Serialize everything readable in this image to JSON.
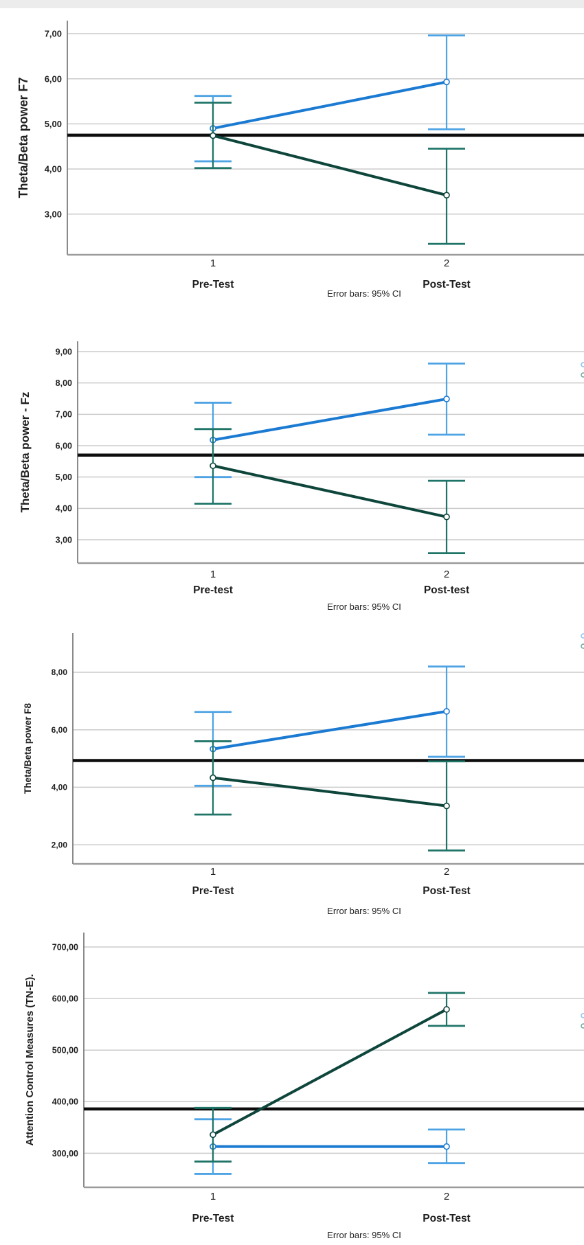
{
  "figure_caption": "Error bars: 95% CI",
  "colors": {
    "blue_line": "#1b7ad2",
    "blue_error": "#4da3e4",
    "teal_line": "#0e463c",
    "teal_error": "#1f7468",
    "reference_line": "#0d0d0d",
    "gridline": "#cbcbcb",
    "y_axis": "#7d7d7d",
    "x_axis": "#9b9b9b",
    "text": "#1f1f1f"
  },
  "chart_data": [
    {
      "type": "line",
      "title": "",
      "ylabel": "Theta/Beta power F7",
      "xlabel": "",
      "x": [
        1,
        2
      ],
      "x_tick_labels": [
        "1",
        "2"
      ],
      "x_group_labels": [
        "Pre-Test",
        "Post-Test"
      ],
      "y_ticks": [
        7,
        6,
        5,
        4,
        3
      ],
      "y_tick_labels": [
        "7,00",
        "6,00",
        "5,00",
        "4,00",
        "3,00"
      ],
      "ylim": [
        2.1,
        7.3
      ],
      "grid": true,
      "legend_position": "cut-off-right",
      "reference_line": 4.75,
      "caption": "Error bars: 95% CI",
      "error_bars": "95% CI",
      "series": [
        {
          "name": "blue-group",
          "values": [
            4.9,
            5.93
          ],
          "ci_low": [
            4.17,
            4.88
          ],
          "ci_high": [
            5.62,
            6.96
          ]
        },
        {
          "name": "dark-teal-group",
          "values": [
            4.74,
            3.42
          ],
          "ci_low": [
            4.02,
            2.34
          ],
          "ci_high": [
            5.47,
            4.45
          ]
        }
      ]
    },
    {
      "type": "line",
      "title": "",
      "ylabel": "Theta/Beta power - Fz",
      "xlabel": "",
      "x": [
        1,
        2
      ],
      "x_tick_labels": [
        "1",
        "2"
      ],
      "x_group_labels": [
        "Pre-test",
        "Post-test"
      ],
      "y_ticks": [
        9,
        8,
        7,
        6,
        5,
        4,
        3
      ],
      "y_tick_labels": [
        "9,00",
        "8,00",
        "7,00",
        "6,00",
        "5,00",
        "4,00",
        "3,00"
      ],
      "ylim": [
        2.25,
        9.4
      ],
      "grid": true,
      "legend_position": "cut-off-right",
      "reference_line": 5.7,
      "caption": "Error bars: 95% CI",
      "error_bars": "95% CI",
      "series": [
        {
          "name": "blue-group",
          "values": [
            6.18,
            7.49
          ],
          "ci_low": [
            5.0,
            6.35
          ],
          "ci_high": [
            7.37,
            8.62
          ]
        },
        {
          "name": "dark-teal-group",
          "values": [
            5.36,
            3.73
          ],
          "ci_low": [
            4.15,
            2.57
          ],
          "ci_high": [
            6.53,
            4.88
          ]
        }
      ]
    },
    {
      "type": "line",
      "title": "",
      "ylabel": "Theta/Beta power F8",
      "xlabel": "",
      "x": [
        1,
        2
      ],
      "x_tick_labels": [
        "1",
        "2"
      ],
      "x_group_labels": [
        "Pre-Test",
        "Post-Test"
      ],
      "y_ticks": [
        8,
        6,
        4,
        2
      ],
      "y_tick_labels": [
        "8,00",
        "6,00",
        "4,00",
        "2,00"
      ],
      "ylim": [
        1.35,
        9.35
      ],
      "grid": true,
      "legend_position": "cut-off-right",
      "reference_line": 4.93,
      "caption": "Error bars: 95% CI",
      "error_bars": "95% CI",
      "series": [
        {
          "name": "blue-group",
          "values": [
            5.33,
            6.64
          ],
          "ci_low": [
            4.05,
            5.06
          ],
          "ci_high": [
            6.62,
            8.2
          ]
        },
        {
          "name": "dark-teal-group",
          "values": [
            4.33,
            3.35
          ],
          "ci_low": [
            3.05,
            1.8
          ],
          "ci_high": [
            5.6,
            4.9
          ]
        }
      ]
    },
    {
      "type": "line",
      "title": "",
      "ylabel": "Attention Control Measures (TN-E).",
      "xlabel": "",
      "x": [
        1,
        2
      ],
      "x_tick_labels": [
        "1",
        "2"
      ],
      "x_group_labels": [
        "Pre-Test",
        "Post-Test"
      ],
      "y_ticks": [
        700,
        600,
        500,
        400,
        300
      ],
      "y_tick_labels": [
        "700,00",
        "600,00",
        "500,00",
        "400,00",
        "300,00"
      ],
      "ylim": [
        234,
        728
      ],
      "grid": true,
      "legend_position": "cut-off-right",
      "reference_line": 386,
      "caption": "Error bars: 95% CI",
      "error_bars": "95% CI",
      "series": [
        {
          "name": "blue-group",
          "values": [
            313,
            313
          ],
          "ci_low": [
            260,
            281
          ],
          "ci_high": [
            366,
            346
          ]
        },
        {
          "name": "dark-teal-group",
          "values": [
            336,
            579
          ],
          "ci_low": [
            284,
            547
          ],
          "ci_high": [
            388,
            611
          ]
        }
      ]
    }
  ]
}
